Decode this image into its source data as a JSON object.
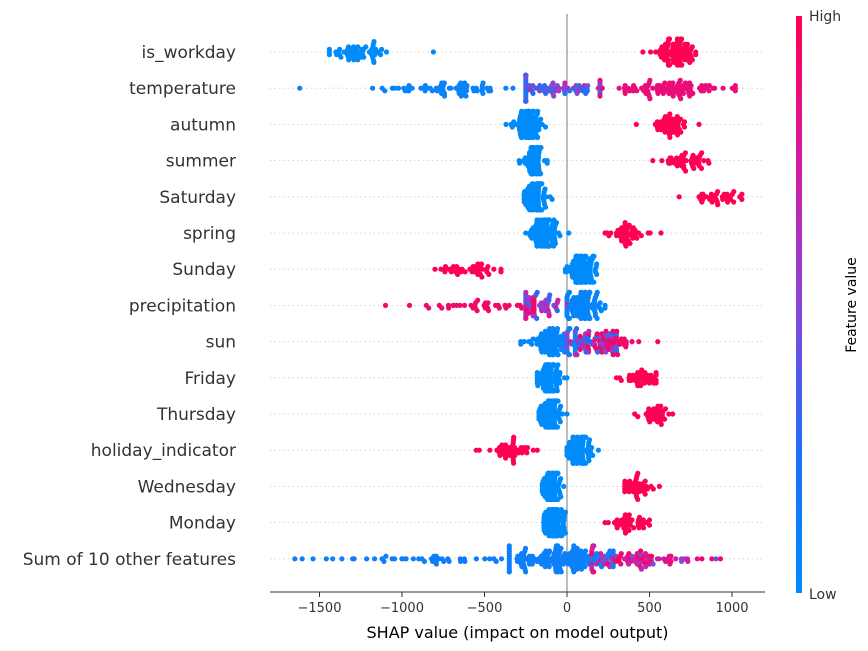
{
  "chart_data": {
    "type": "scatter",
    "subtype": "shap-beeswarm",
    "xlabel": "SHAP value (impact on model output)",
    "xlim": [
      -1800,
      1200
    ],
    "xticks": [
      -1500,
      -1000,
      -500,
      0,
      500,
      1000
    ],
    "xtick_labels": [
      "−1500",
      "−1000",
      "−500",
      "0",
      "500",
      "1000"
    ],
    "reference_line": 0,
    "grid": false,
    "colorbar": {
      "label": "Feature value",
      "high_label": "High",
      "low_label": "Low",
      "low_color": "#008bfb",
      "high_color": "#ff0052"
    },
    "features": [
      {
        "name": "is_workday",
        "clusters": [
          {
            "center": -1270,
            "spread": 110,
            "range": [
              -1440,
              -810
            ],
            "count": 55,
            "value": 0.0
          },
          {
            "center": 650,
            "spread": 55,
            "range": [
              460,
              780
            ],
            "count": 90,
            "value": 1.0
          }
        ]
      },
      {
        "name": "temperature",
        "clusters": [
          {
            "center": -650,
            "spread": 240,
            "range": [
              -1620,
              -250
            ],
            "count": 70,
            "value": 0.08
          },
          {
            "center": -80,
            "spread": 170,
            "range": [
              -250,
              200
            ],
            "count": 70,
            "value": 0.42
          },
          {
            "center": 620,
            "spread": 190,
            "range": [
              200,
              1020
            ],
            "count": 95,
            "value": 0.88
          }
        ]
      },
      {
        "name": "autumn",
        "clusters": [
          {
            "center": -230,
            "spread": 45,
            "range": [
              -370,
              -130
            ],
            "count": 85,
            "value": 0.0
          },
          {
            "center": 630,
            "spread": 60,
            "range": [
              420,
              800
            ],
            "count": 50,
            "value": 1.0
          }
        ]
      },
      {
        "name": "summer",
        "clusters": [
          {
            "center": -200,
            "spread": 35,
            "range": [
              -290,
              -120
            ],
            "count": 80,
            "value": 0.0
          },
          {
            "center": 720,
            "spread": 60,
            "range": [
              520,
              860
            ],
            "count": 45,
            "value": 1.0
          }
        ]
      },
      {
        "name": "Saturday",
        "clusters": [
          {
            "center": -190,
            "spread": 35,
            "range": [
              -260,
              -90
            ],
            "count": 90,
            "value": 0.0
          },
          {
            "center": 900,
            "spread": 80,
            "range": [
              680,
              1060
            ],
            "count": 35,
            "value": 1.0
          }
        ]
      },
      {
        "name": "spring",
        "clusters": [
          {
            "center": -130,
            "spread": 45,
            "range": [
              -250,
              10
            ],
            "count": 95,
            "value": 0.0
          },
          {
            "center": 360,
            "spread": 60,
            "range": [
              230,
              570
            ],
            "count": 45,
            "value": 1.0
          }
        ]
      },
      {
        "name": "Sunday",
        "clusters": [
          {
            "center": -600,
            "spread": 100,
            "range": [
              -800,
              -400
            ],
            "count": 40,
            "value": 1.0
          },
          {
            "center": 90,
            "spread": 45,
            "range": [
              -10,
              180
            ],
            "count": 90,
            "value": 0.0
          }
        ]
      },
      {
        "name": "precipitation",
        "clusters": [
          {
            "center": -450,
            "spread": 210,
            "range": [
              -1100,
              -200
            ],
            "count": 45,
            "value": 0.92
          },
          {
            "center": -140,
            "spread": 120,
            "range": [
              -250,
              0
            ],
            "count": 55,
            "value": 0.55
          },
          {
            "center": 100,
            "spread": 55,
            "range": [
              0,
              230
            ],
            "count": 90,
            "value": 0.05
          }
        ]
      },
      {
        "name": "sun",
        "clusters": [
          {
            "center": -100,
            "spread": 80,
            "range": [
              -280,
              50
            ],
            "count": 90,
            "value": 0.04
          },
          {
            "center": 120,
            "spread": 90,
            "range": [
              0,
              300
            ],
            "count": 60,
            "value": 0.45
          },
          {
            "center": 280,
            "spread": 90,
            "range": [
              80,
              550
            ],
            "count": 45,
            "value": 0.92
          }
        ]
      },
      {
        "name": "Friday",
        "clusters": [
          {
            "center": -110,
            "spread": 35,
            "range": [
              -180,
              0
            ],
            "count": 90,
            "value": 0.0
          },
          {
            "center": 450,
            "spread": 55,
            "range": [
              300,
              540
            ],
            "count": 40,
            "value": 1.0
          }
        ]
      },
      {
        "name": "Thursday",
        "clusters": [
          {
            "center": -100,
            "spread": 35,
            "range": [
              -170,
              0
            ],
            "count": 90,
            "value": 0.0
          },
          {
            "center": 520,
            "spread": 45,
            "range": [
              410,
              640
            ],
            "count": 35,
            "value": 1.0
          }
        ]
      },
      {
        "name": "holiday_indicator",
        "clusters": [
          {
            "center": -330,
            "spread": 70,
            "range": [
              -550,
              -180
            ],
            "count": 45,
            "value": 1.0
          },
          {
            "center": 70,
            "spread": 35,
            "range": [
              0,
              190
            ],
            "count": 90,
            "value": 0.0
          }
        ]
      },
      {
        "name": "Wednesday",
        "clusters": [
          {
            "center": -90,
            "spread": 30,
            "range": [
              -150,
              -20
            ],
            "count": 90,
            "value": 0.0
          },
          {
            "center": 440,
            "spread": 45,
            "range": [
              350,
              560
            ],
            "count": 40,
            "value": 1.0
          }
        ]
      },
      {
        "name": "Monday",
        "clusters": [
          {
            "center": -80,
            "spread": 30,
            "range": [
              -140,
              -10
            ],
            "count": 90,
            "value": 0.0
          },
          {
            "center": 380,
            "spread": 55,
            "range": [
              230,
              500
            ],
            "count": 40,
            "value": 1.0
          }
        ]
      },
      {
        "name": "Sum of 10 other features",
        "clusters": [
          {
            "center": -700,
            "spread": 330,
            "range": [
              -1650,
              -350
            ],
            "count": 50,
            "value": 0.12
          },
          {
            "center": -60,
            "spread": 160,
            "range": [
              -350,
              280
            ],
            "count": 150,
            "value": 0.1
          },
          {
            "center": 380,
            "spread": 220,
            "range": [
              150,
              930
            ],
            "count": 90,
            "value": 0.75
          }
        ]
      }
    ]
  }
}
